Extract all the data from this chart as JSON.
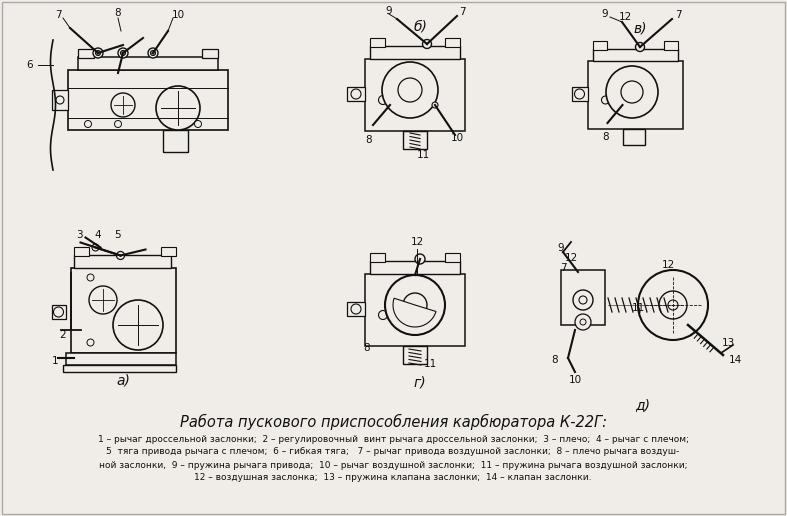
{
  "title": "Работа пускового приспособления карбюратора К-22Г:",
  "caption_lines": [
    "1 – рычаг дроссельной заслонки;  2 – регулировочный  винт рычага дроссельной заслонки;  3 – плечо;  4 – рычаг с плечом;",
    "5  тяга привода рычага с плечом;  6 – гибкая тяга;   7 – рычаг привода воздушной заслонки;  8 – плечо рычага воздуш-",
    "ной заслонки,  9 – пружина рычага привода;  10 – рычаг воздушной заслонки;  11 – пружина рычага воздушной заслонки;",
    "12 – воздушная заслонка;  13 – пружина клапана заслонки;  14 – клапан заслонки."
  ],
  "background_color": "#f0ede8",
  "text_color": "#111111",
  "figure_width": 7.87,
  "figure_height": 5.16,
  "dpi": 100
}
